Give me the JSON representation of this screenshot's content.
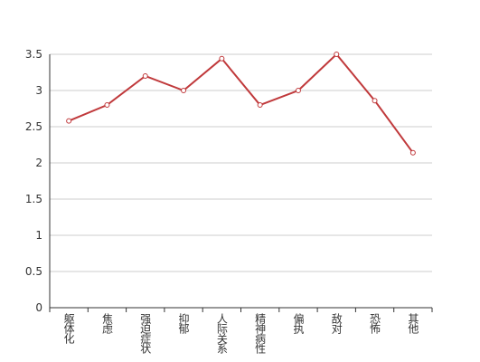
{
  "chart_data": {
    "type": "line",
    "categories": [
      "躯体化",
      "焦虑",
      "强迫症状",
      "抑郁",
      "人际关系",
      "精神病性",
      "偏执",
      "敌对",
      "恐怖",
      "其他"
    ],
    "values": [
      2.58,
      2.8,
      3.2,
      3.0,
      3.44,
      2.8,
      3.0,
      3.5,
      2.86,
      2.14
    ],
    "color": "#c0393b",
    "ylim": [
      0,
      3.5
    ],
    "yticks": [
      0,
      0.5,
      1,
      1.5,
      2,
      2.5,
      3,
      3.5
    ],
    "grid": true
  }
}
